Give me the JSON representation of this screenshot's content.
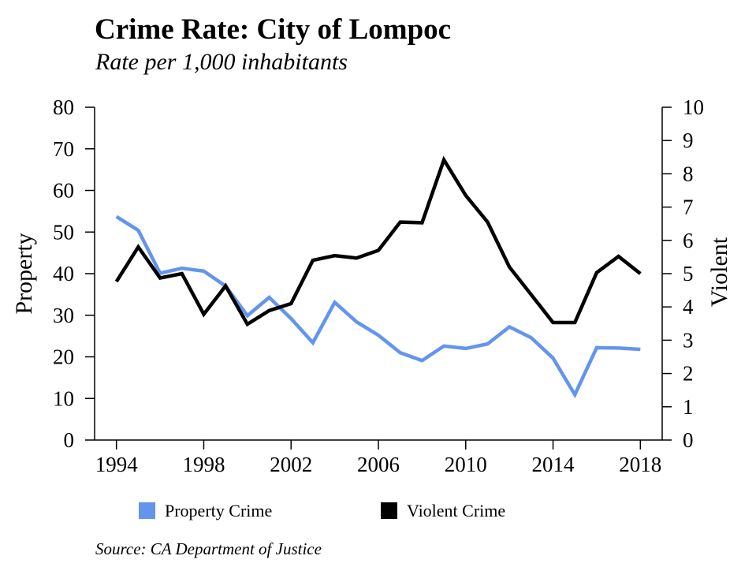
{
  "chart_data": {
    "type": "line",
    "title": "Crime Rate: City of Lompoc",
    "subtitle": "Rate per 1,000 inhabitants",
    "source": "Source: CA Department of Justice",
    "x": [
      1994,
      1995,
      1996,
      1997,
      1998,
      1999,
      2000,
      2001,
      2002,
      2003,
      2004,
      2005,
      2006,
      2007,
      2008,
      2009,
      2010,
      2011,
      2012,
      2013,
      2014,
      2015,
      2016,
      2017,
      2018
    ],
    "x_ticks": [
      1994,
      1998,
      2002,
      2006,
      2010,
      2014,
      2018
    ],
    "xlim": [
      1993,
      2019
    ],
    "y_left": {
      "label": "Property",
      "lim": [
        0,
        80
      ],
      "ticks": [
        0,
        10,
        20,
        30,
        40,
        50,
        60,
        70,
        80
      ]
    },
    "y_right": {
      "label": "Violent",
      "lim": [
        0,
        10
      ],
      "ticks": [
        0,
        1,
        2,
        3,
        4,
        5,
        6,
        7,
        8,
        9,
        10
      ]
    },
    "series": [
      {
        "name": "Property Crime",
        "axis": "left",
        "color": "#6495ED",
        "values": [
          53.7,
          50.4,
          40.1,
          41.3,
          40.6,
          37.0,
          29.9,
          34.3,
          29.2,
          23.4,
          33.1,
          28.4,
          25.2,
          21.0,
          19.1,
          22.6,
          22.0,
          23.1,
          27.2,
          24.6,
          19.7,
          10.9,
          22.2,
          22.1,
          21.8
        ]
      },
      {
        "name": "Violent Crime",
        "axis": "right",
        "color": "#000000",
        "values": [
          4.76,
          5.8,
          4.87,
          5.0,
          3.78,
          4.63,
          3.48,
          3.89,
          4.1,
          5.4,
          5.54,
          5.47,
          5.7,
          6.55,
          6.53,
          8.42,
          7.35,
          6.55,
          5.2,
          4.37,
          3.53,
          3.53,
          5.03,
          5.52,
          5.0
        ]
      }
    ],
    "legend": "bottom",
    "grid": false
  }
}
